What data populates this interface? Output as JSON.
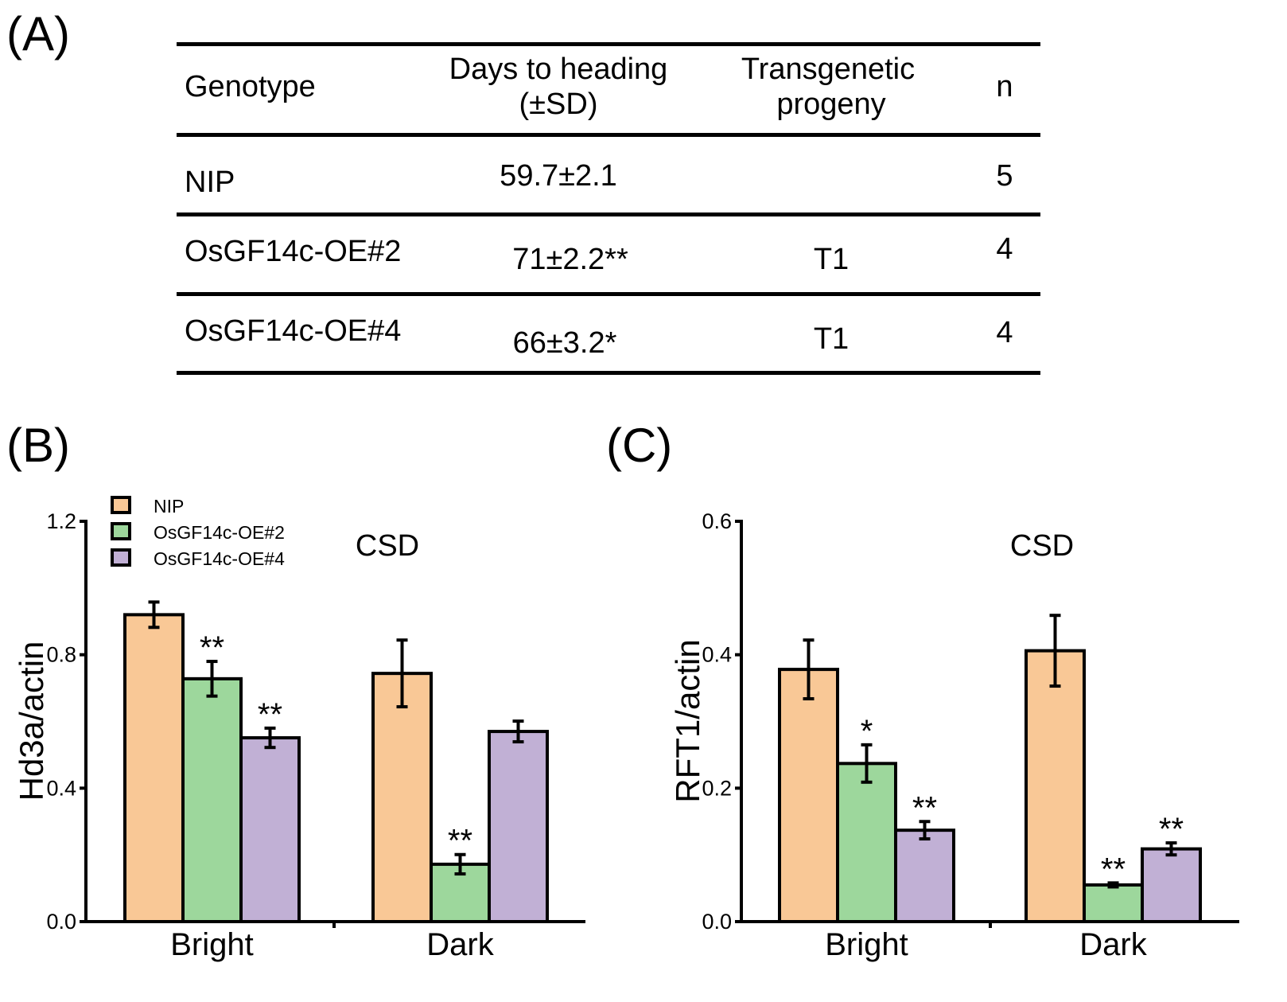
{
  "panels": {
    "a": "(A)",
    "b": "(B)",
    "c": "(C)"
  },
  "table": {
    "headers": {
      "genotype": "Genotype",
      "days_line1": "Days to heading",
      "days_line2": "(±SD)",
      "prog_line1": "Transgenetic",
      "prog_line2": "progeny",
      "n": "n"
    },
    "rows": [
      {
        "genotype": "NIP",
        "days": "59.7±2.1",
        "progeny": "",
        "n": "5"
      },
      {
        "genotype": "OsGF14c-OE#2",
        "days": "71±2.2**",
        "progeny": "T1",
        "n": "4"
      },
      {
        "genotype": "OsGF14c-OE#4",
        "days": "66±3.2*",
        "progeny": "T1",
        "n": "4"
      }
    ]
  },
  "colors": {
    "NIP": "#f9c896",
    "OsGF14c-OE#2": "#9dd79c",
    "OsGF14c-OE#4": "#c1b0d5"
  },
  "chart_data": [
    {
      "type": "bar",
      "title": "CSD",
      "ylabel": "Hd3a/actin",
      "xlabel": "",
      "categories": [
        "Bright",
        "Dark"
      ],
      "ylim": [
        0,
        1.2
      ],
      "yticks": [
        "0.0",
        "0.4",
        "0.8",
        "1.2"
      ],
      "legend": {
        "placement": "top-left",
        "entries": [
          "NIP",
          "OsGF14c-OE#2",
          "OsGF14c-OE#4"
        ]
      },
      "series": [
        {
          "name": "NIP",
          "values": [
            0.92,
            0.744
          ],
          "errors": [
            0.038,
            0.1
          ],
          "sig": [
            "",
            ""
          ]
        },
        {
          "name": "OsGF14c-OE#2",
          "values": [
            0.728,
            0.172
          ],
          "errors": [
            0.052,
            0.029
          ],
          "sig": [
            "**",
            "**"
          ]
        },
        {
          "name": "OsGF14c-OE#4",
          "values": [
            0.551,
            0.57
          ],
          "errors": [
            0.029,
            0.031
          ],
          "sig": [
            "**",
            ""
          ]
        }
      ]
    },
    {
      "type": "bar",
      "title": "CSD",
      "ylabel": "RFT1/actin",
      "xlabel": "",
      "categories": [
        "Bright",
        "Dark"
      ],
      "ylim": [
        0,
        0.6
      ],
      "yticks": [
        "0.0",
        "0.2",
        "0.4",
        "0.6"
      ],
      "series": [
        {
          "name": "NIP",
          "values": [
            0.378,
            0.406
          ],
          "errors": [
            0.044,
            0.053
          ],
          "sig": [
            "",
            ""
          ]
        },
        {
          "name": "OsGF14c-OE#2",
          "values": [
            0.237,
            0.055
          ],
          "errors": [
            0.028,
            0.003
          ],
          "sig": [
            "*",
            "**"
          ]
        },
        {
          "name": "OsGF14c-OE#4",
          "values": [
            0.137,
            0.109
          ],
          "errors": [
            0.013,
            0.009
          ],
          "sig": [
            "**",
            "**"
          ]
        }
      ]
    }
  ]
}
